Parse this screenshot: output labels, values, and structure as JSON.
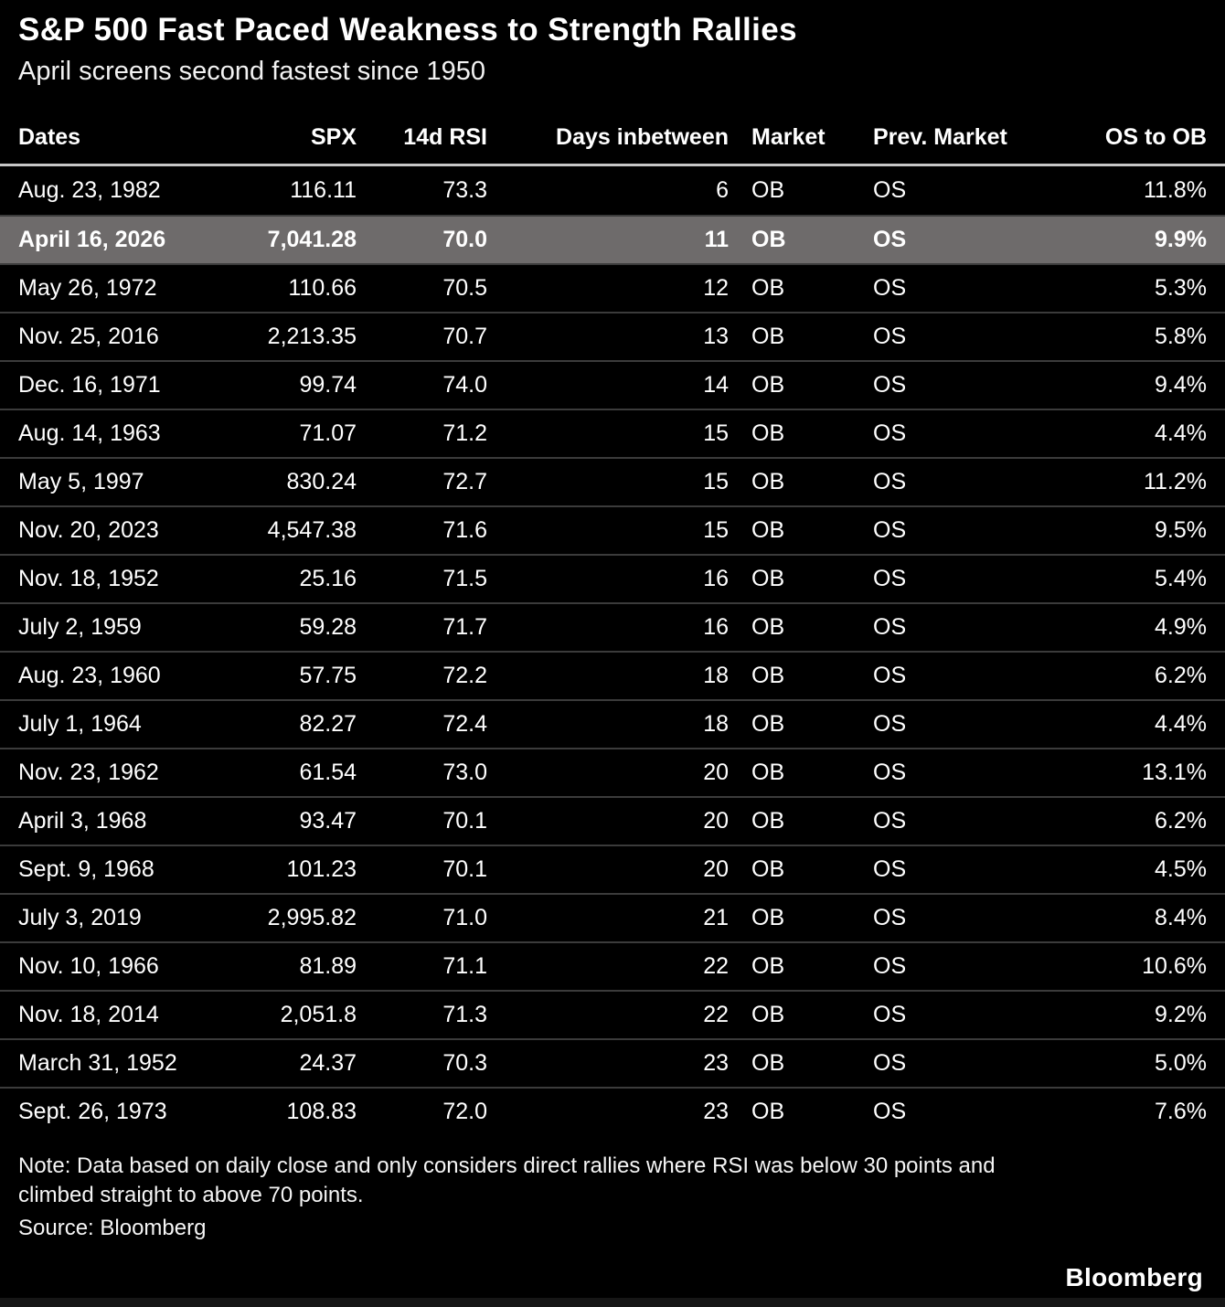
{
  "chart_data": {
    "type": "table",
    "title": "S&P 500 Fast Paced Weakness to Strength Rallies",
    "subtitle": "April screens second fastest since 1950",
    "columns": [
      "Dates",
      "SPX",
      "14d RSI",
      "Days inbetween",
      "Market",
      "Prev. Market",
      "OS to OB"
    ],
    "rows": [
      {
        "date": "Aug. 23, 1982",
        "spx": "116.11",
        "rsi": "73.3",
        "days": "6",
        "market": "OB",
        "prev_market": "OS",
        "os_to_ob": "11.8%",
        "highlighted": false
      },
      {
        "date": "April 16, 2026",
        "spx": "7,041.28",
        "rsi": "70.0",
        "days": "11",
        "market": "OB",
        "prev_market": "OS",
        "os_to_ob": "9.9%",
        "highlighted": true
      },
      {
        "date": "May 26, 1972",
        "spx": "110.66",
        "rsi": "70.5",
        "days": "12",
        "market": "OB",
        "prev_market": "OS",
        "os_to_ob": "5.3%",
        "highlighted": false
      },
      {
        "date": "Nov. 25, 2016",
        "spx": "2,213.35",
        "rsi": "70.7",
        "days": "13",
        "market": "OB",
        "prev_market": "OS",
        "os_to_ob": "5.8%",
        "highlighted": false
      },
      {
        "date": "Dec. 16, 1971",
        "spx": "99.74",
        "rsi": "74.0",
        "days": "14",
        "market": "OB",
        "prev_market": "OS",
        "os_to_ob": "9.4%",
        "highlighted": false
      },
      {
        "date": "Aug. 14, 1963",
        "spx": "71.07",
        "rsi": "71.2",
        "days": "15",
        "market": "OB",
        "prev_market": "OS",
        "os_to_ob": "4.4%",
        "highlighted": false
      },
      {
        "date": "May 5, 1997",
        "spx": "830.24",
        "rsi": "72.7",
        "days": "15",
        "market": "OB",
        "prev_market": "OS",
        "os_to_ob": "11.2%",
        "highlighted": false
      },
      {
        "date": "Nov. 20, 2023",
        "spx": "4,547.38",
        "rsi": "71.6",
        "days": "15",
        "market": "OB",
        "prev_market": "OS",
        "os_to_ob": "9.5%",
        "highlighted": false
      },
      {
        "date": "Nov. 18, 1952",
        "spx": "25.16",
        "rsi": "71.5",
        "days": "16",
        "market": "OB",
        "prev_market": "OS",
        "os_to_ob": "5.4%",
        "highlighted": false
      },
      {
        "date": "July 2, 1959",
        "spx": "59.28",
        "rsi": "71.7",
        "days": "16",
        "market": "OB",
        "prev_market": "OS",
        "os_to_ob": "4.9%",
        "highlighted": false
      },
      {
        "date": "Aug. 23, 1960",
        "spx": "57.75",
        "rsi": "72.2",
        "days": "18",
        "market": "OB",
        "prev_market": "OS",
        "os_to_ob": "6.2%",
        "highlighted": false
      },
      {
        "date": "July 1, 1964",
        "spx": "82.27",
        "rsi": "72.4",
        "days": "18",
        "market": "OB",
        "prev_market": "OS",
        "os_to_ob": "4.4%",
        "highlighted": false
      },
      {
        "date": "Nov. 23, 1962",
        "spx": "61.54",
        "rsi": "73.0",
        "days": "20",
        "market": "OB",
        "prev_market": "OS",
        "os_to_ob": "13.1%",
        "highlighted": false
      },
      {
        "date": "April 3, 1968",
        "spx": "93.47",
        "rsi": "70.1",
        "days": "20",
        "market": "OB",
        "prev_market": "OS",
        "os_to_ob": "6.2%",
        "highlighted": false
      },
      {
        "date": "Sept. 9, 1968",
        "spx": "101.23",
        "rsi": "70.1",
        "days": "20",
        "market": "OB",
        "prev_market": "OS",
        "os_to_ob": "4.5%",
        "highlighted": false
      },
      {
        "date": "July 3, 2019",
        "spx": "2,995.82",
        "rsi": "71.0",
        "days": "21",
        "market": "OB",
        "prev_market": "OS",
        "os_to_ob": "8.4%",
        "highlighted": false
      },
      {
        "date": "Nov. 10, 1966",
        "spx": "81.89",
        "rsi": "71.1",
        "days": "22",
        "market": "OB",
        "prev_market": "OS",
        "os_to_ob": "10.6%",
        "highlighted": false
      },
      {
        "date": "Nov. 18, 2014",
        "spx": "2,051.8",
        "rsi": "71.3",
        "days": "22",
        "market": "OB",
        "prev_market": "OS",
        "os_to_ob": "9.2%",
        "highlighted": false
      },
      {
        "date": "March 31, 1952",
        "spx": "24.37",
        "rsi": "70.3",
        "days": "23",
        "market": "OB",
        "prev_market": "OS",
        "os_to_ob": "5.0%",
        "highlighted": false
      },
      {
        "date": "Sept. 26, 1973",
        "spx": "108.83",
        "rsi": "72.0",
        "days": "23",
        "market": "OB",
        "prev_market": "OS",
        "os_to_ob": "7.6%",
        "highlighted": false
      }
    ],
    "highlighted_row_date": "April 16, 2026",
    "layout": {
      "grid": "off",
      "legend": "none"
    }
  },
  "footer": {
    "note_lines": [
      "Note: Data based on daily close and only considers direct rallies where RSI was below 30 points and",
      "climbed straight to above 70 points."
    ],
    "source": "Source: Bloomberg",
    "brand": "Bloomberg"
  },
  "colors": {
    "background": "#000000",
    "text": "#ffffff",
    "highlight_row_bg": "#6e6b6b",
    "header_rule": "#c6c6c6",
    "row_divider": "#3b3b3b",
    "bottom_strip": "#161616"
  }
}
